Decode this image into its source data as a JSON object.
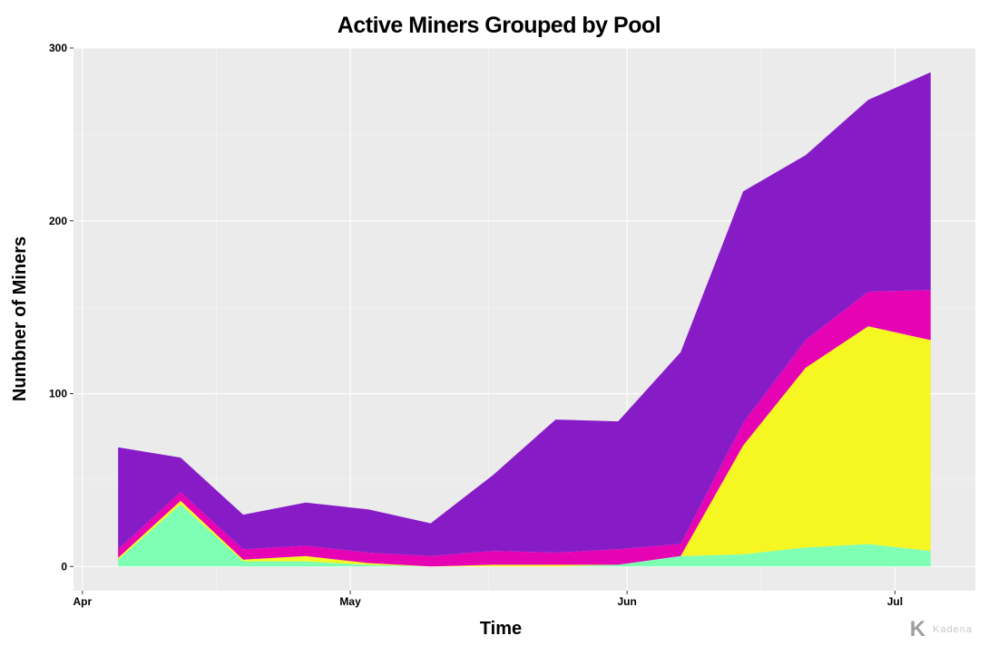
{
  "chart_data": {
    "type": "area",
    "stacked": true,
    "title": "Active Miners Grouped by Pool",
    "xlabel": "Time",
    "ylabel": "Numbner of Miners",
    "ylim": [
      -14,
      300
    ],
    "yticks": [
      0,
      100,
      200,
      300
    ],
    "xlim": [
      "2020-03-31",
      "2020-07-10"
    ],
    "xticks": [
      {
        "date": "2020-04-01",
        "label": "Apr"
      },
      {
        "date": "2020-05-01",
        "label": "May"
      },
      {
        "date": "2020-06-01",
        "label": "Jun"
      },
      {
        "date": "2020-07-01",
        "label": "Jul"
      }
    ],
    "grid": true,
    "legend": "none",
    "x": [
      "2020-04-05",
      "2020-04-12",
      "2020-04-19",
      "2020-04-26",
      "2020-05-03",
      "2020-05-10",
      "2020-05-17",
      "2020-05-24",
      "2020-05-31",
      "2020-06-07",
      "2020-06-14",
      "2020-06-21",
      "2020-06-28",
      "2020-07-05"
    ],
    "series": [
      {
        "color": "#7fffb4",
        "values": [
          4,
          36,
          3,
          3,
          1,
          0,
          0,
          0,
          1,
          6,
          7,
          11,
          13,
          9
        ]
      },
      {
        "color": "#f6f623",
        "values": [
          1,
          2,
          1,
          3,
          1,
          0,
          1,
          1,
          0,
          0,
          63,
          104,
          126,
          122
        ]
      },
      {
        "color": "#e603b4",
        "values": [
          5,
          5,
          6,
          6,
          6,
          6,
          8,
          7,
          9,
          7,
          13,
          16,
          20,
          29
        ]
      },
      {
        "color": "#871cc7",
        "values": [
          59,
          20,
          20,
          25,
          25,
          19,
          44,
          77,
          74,
          111,
          134,
          107,
          111,
          126
        ]
      }
    ]
  },
  "watermark": {
    "logo": "K",
    "text": "Kadena"
  }
}
